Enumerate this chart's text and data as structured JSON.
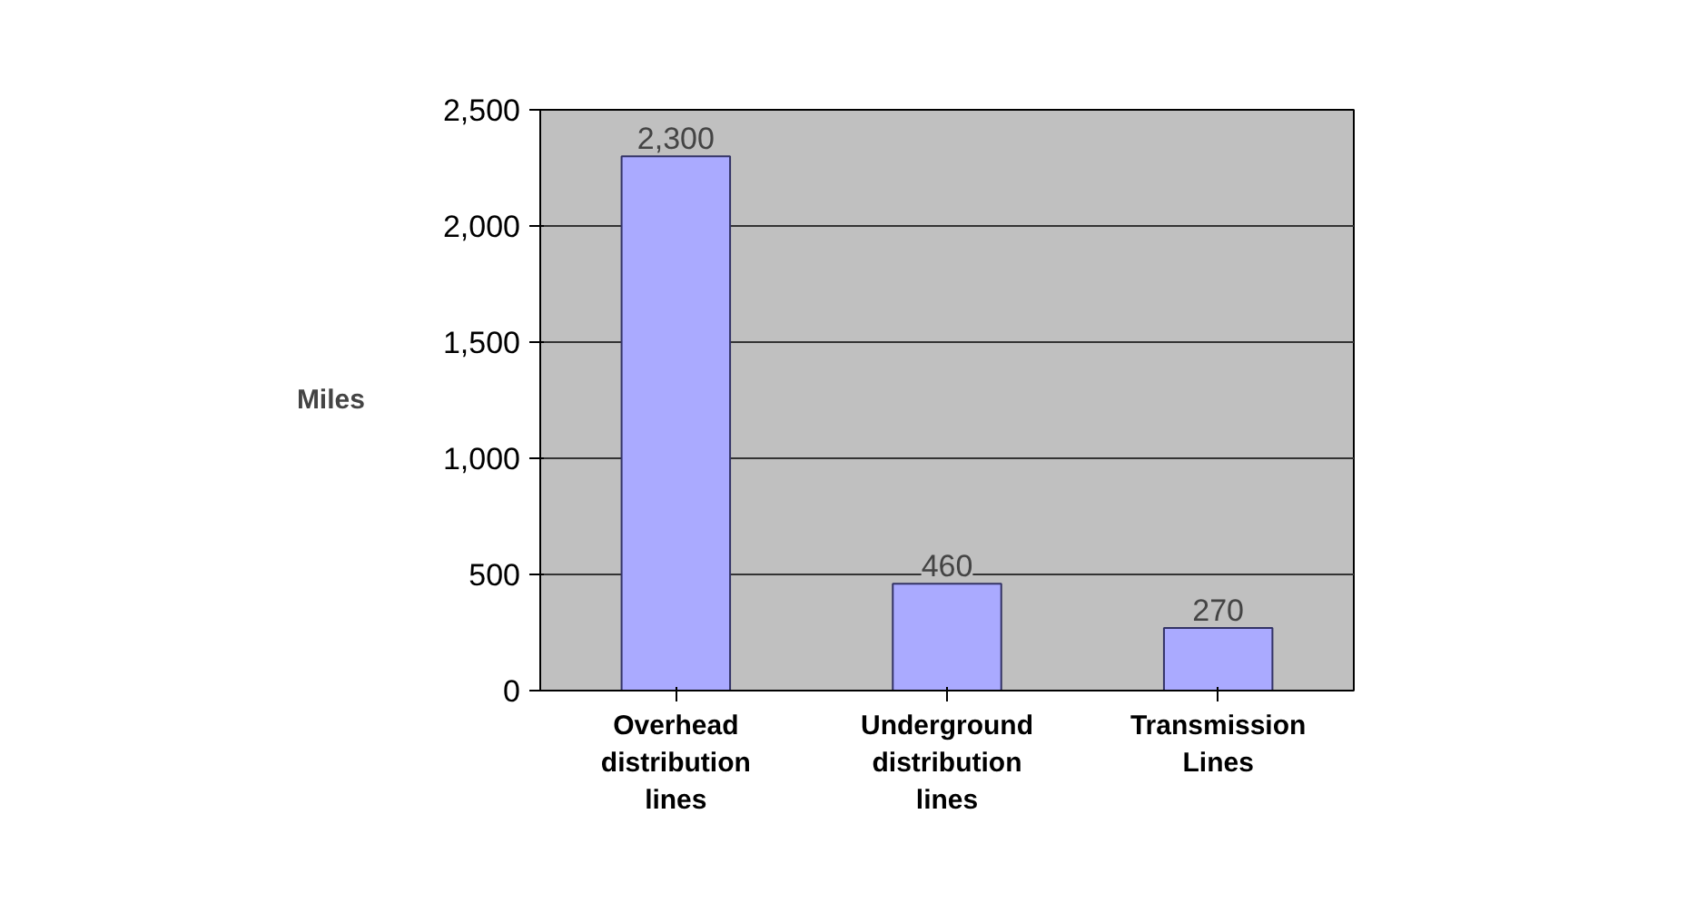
{
  "chart_data": {
    "type": "bar",
    "ylabel": "Miles",
    "categories": [
      "Overhead distribution lines",
      "Underground distribution lines",
      "Transmission Lines"
    ],
    "values": [
      2300,
      460,
      270
    ],
    "color": "#aaaaff",
    "ylim": [
      0,
      2500
    ],
    "yticks": [
      {
        "value": 0,
        "label": "0"
      },
      {
        "value": 500,
        "label": "500"
      },
      {
        "value": 1000,
        "label": "1,000"
      },
      {
        "value": 1500,
        "label": "1,500"
      },
      {
        "value": 2000,
        "label": "2,000"
      },
      {
        "value": 2500,
        "label": "2,500"
      }
    ],
    "value_labels": [
      "2,300",
      "460",
      "270"
    ],
    "grid": "y"
  }
}
